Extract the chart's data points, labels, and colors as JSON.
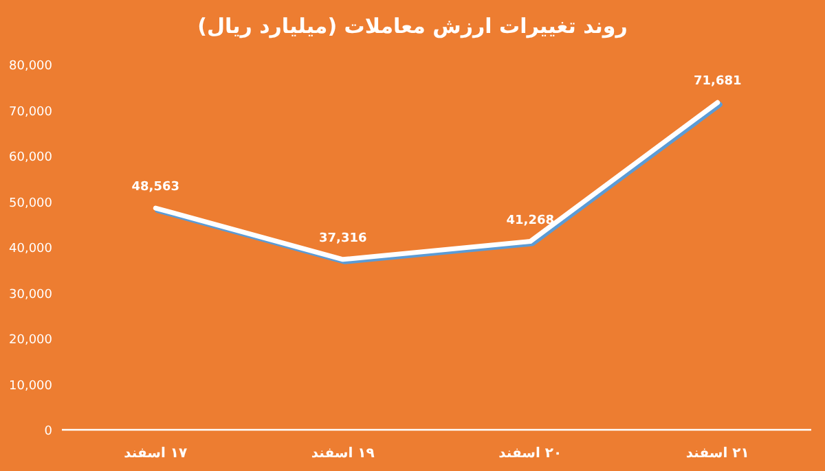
{
  "chart_data": {
    "type": "line",
    "title": "روند تغییرات ارزش معاملات (میلیارد ریال)",
    "categories": [
      "۱۷ اسفند",
      "۱۹ اسفند",
      "۲۰ اسفند",
      "۲۱ اسفند"
    ],
    "series": [
      {
        "color": "#ffffff",
        "values": [
          48563,
          37316,
          41268,
          71681
        ]
      }
    ],
    "value_labels": [
      "48,563",
      "37,316",
      "41,268",
      "71,681"
    ],
    "ylim": [
      0,
      80000
    ],
    "yticks": [
      0,
      {
        "value": 10000,
        "label": "10,000"
      },
      {
        "value": 20000,
        "label": "20,000"
      },
      {
        "value": 30000,
        "label": "30,000"
      },
      {
        "value": 40000,
        "label": "40,000"
      },
      {
        "value": 50000,
        "label": "50,000"
      },
      {
        "value": 60000,
        "label": "60,000"
      },
      {
        "value": 70000,
        "label": "70,000"
      },
      {
        "value": 80000,
        "label": "80,000"
      }
    ],
    "marker": "none",
    "line_style": "solid"
  }
}
